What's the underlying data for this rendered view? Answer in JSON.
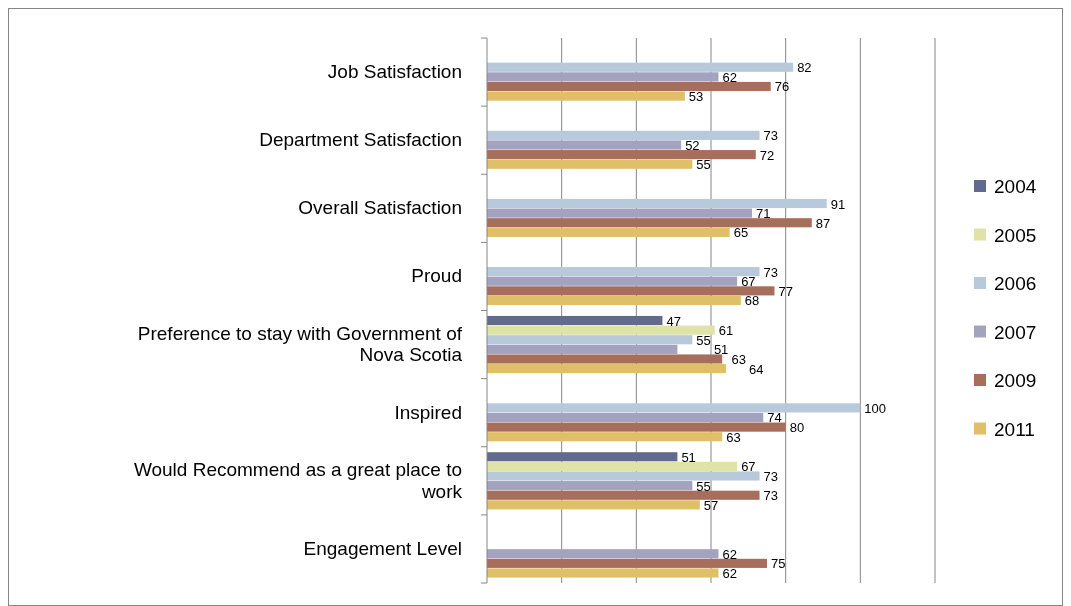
{
  "chart_data": {
    "type": "bar",
    "orientation": "horizontal",
    "categories": [
      "Job Satisfaction",
      "Department Satisfaction",
      "Overall Satisfaction",
      "Proud",
      "Preference to stay with Government of Nova Scotia",
      "Inspired",
      "Would Recommend as a great place to work",
      "Engagement Level"
    ],
    "series": [
      {
        "name": "2004",
        "color": "#636a8f",
        "values": [
          null,
          null,
          null,
          null,
          47,
          null,
          51,
          null
        ]
      },
      {
        "name": "2005",
        "color": "#dfe3a8",
        "values": [
          null,
          null,
          null,
          null,
          61,
          null,
          67,
          null
        ]
      },
      {
        "name": "2006",
        "color": "#b9c9dc",
        "values": [
          82,
          73,
          91,
          73,
          55,
          100,
          73,
          null
        ]
      },
      {
        "name": "2007",
        "color": "#a3a3bf",
        "values": [
          62,
          52,
          71,
          67,
          51,
          74,
          55,
          62
        ]
      },
      {
        "name": "2009",
        "color": "#a86e5c",
        "values": [
          76,
          72,
          87,
          77,
          63,
          80,
          73,
          75
        ]
      },
      {
        "name": "2011",
        "color": "#dfbf68",
        "values": [
          53,
          55,
          65,
          68,
          64,
          63,
          57,
          62
        ]
      }
    ],
    "xlim": [
      0,
      120
    ],
    "xticks": [
      {
        "value": 0,
        "label": null
      },
      {
        "value": 20,
        "label": null
      },
      {
        "value": 40,
        "label": null
      },
      {
        "value": 60,
        "label": null
      },
      {
        "value": 80,
        "label": null
      },
      {
        "value": 100,
        "label": null
      },
      {
        "value": 120,
        "label": null
      }
    ],
    "grid": "x",
    "legend": "right",
    "data_labels": true,
    "tick_labels": "y"
  }
}
